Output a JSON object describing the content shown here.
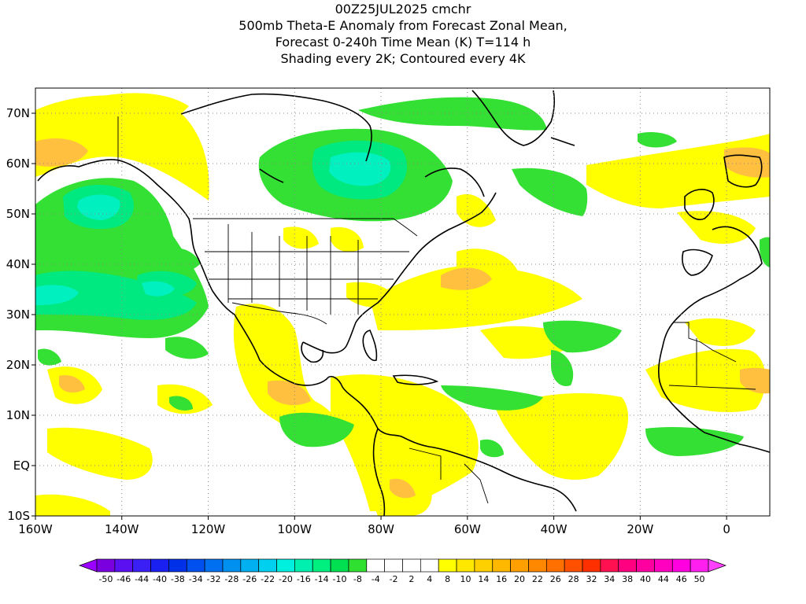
{
  "titles": {
    "line1": "00Z25JUL2025 cmchr",
    "line2": "500mb Theta-E Anomaly from Forecast Zonal Mean,",
    "line3": "Forecast 0-240h Time Mean (K) T=114 h",
    "line4": "Shading every 2K; Contoured every 4K"
  },
  "map": {
    "lon_range": [
      -160,
      10
    ],
    "lat_range": [
      -10,
      75
    ],
    "gridlines": "dotted",
    "x_ticks": [
      "160W",
      "140W",
      "120W",
      "100W",
      "80W",
      "60W",
      "40W",
      "20W",
      "0"
    ],
    "x_tick_values": [
      -160,
      -140,
      -120,
      -100,
      -80,
      -60,
      -40,
      -20,
      0
    ],
    "y_ticks": [
      "10S",
      "EQ",
      "10N",
      "20N",
      "30N",
      "40N",
      "50N",
      "60N",
      "70N"
    ],
    "y_tick_values": [
      -10,
      0,
      10,
      20,
      30,
      40,
      50,
      60,
      70
    ]
  },
  "colorbar": {
    "labels": [
      "-50",
      "-46",
      "-44",
      "-40",
      "-38",
      "-34",
      "-32",
      "-28",
      "-26",
      "-22",
      "-20",
      "-16",
      "-14",
      "-10",
      "-8",
      "-4",
      "-2",
      "2",
      "4",
      "8",
      "10",
      "14",
      "16",
      "20",
      "22",
      "26",
      "28",
      "32",
      "34",
      "38",
      "40",
      "44",
      "46",
      "50"
    ],
    "colors": [
      "#7a00e0",
      "#5a10f0",
      "#3a20f5",
      "#1a20f0",
      "#0030e8",
      "#0050f0",
      "#0070f0",
      "#0090f0",
      "#00b0f0",
      "#00d0f0",
      "#00f0e0",
      "#00f0b0",
      "#00f080",
      "#00e050",
      "#30e030",
      "#ffffff",
      "#ffffff",
      "#ffffff",
      "#ffffff",
      "#ffff00",
      "#ffe800",
      "#ffd000",
      "#ffb800",
      "#ffa000",
      "#ff8800",
      "#ff7000",
      "#ff5000",
      "#ff3000",
      "#ff1050",
      "#ff0080",
      "#ff00a0",
      "#ff00c0",
      "#ff00e0",
      "#ff20f0"
    ],
    "end_left_color": "#9a00ff",
    "end_right_color": "#ff40ff"
  },
  "colors": {
    "green_light": "#33e033",
    "green_mid": "#00e880",
    "teal": "#00f0c0",
    "yellow": "#ffff00",
    "gold": "#ffe000",
    "orange_light": "#ffc040",
    "orange": "#ff9a30"
  }
}
